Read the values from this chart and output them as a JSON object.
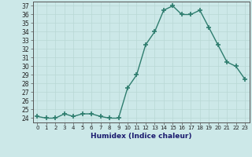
{
  "x": [
    0,
    1,
    2,
    3,
    4,
    5,
    6,
    7,
    8,
    9,
    10,
    11,
    12,
    13,
    14,
    15,
    16,
    17,
    18,
    19,
    20,
    21,
    22,
    23
  ],
  "y": [
    24.2,
    24.0,
    24.0,
    24.5,
    24.2,
    24.5,
    24.5,
    24.2,
    24.0,
    24.0,
    27.5,
    29.0,
    32.5,
    34.0,
    36.5,
    37.0,
    36.0,
    36.0,
    36.5,
    34.5,
    32.5,
    30.5,
    30.0,
    28.5
  ],
  "xlabel": "Humidex (Indice chaleur)",
  "ylim": [
    23.5,
    37.5
  ],
  "xlim": [
    -0.5,
    23.5
  ],
  "yticks": [
    24,
    25,
    26,
    27,
    28,
    29,
    30,
    31,
    32,
    33,
    34,
    35,
    36,
    37
  ],
  "xtick_labels": [
    "0",
    "1",
    "2",
    "3",
    "4",
    "5",
    "6",
    "7",
    "8",
    "9",
    "10",
    "11",
    "12",
    "13",
    "14",
    "15",
    "16",
    "17",
    "18",
    "19",
    "20",
    "21",
    "22",
    "23"
  ],
  "line_color": "#2e7d6e",
  "bg_color": "#cce8e8",
  "grid_color": "#b8d8d5",
  "marker": "+",
  "markersize": 4,
  "linewidth": 1.0,
  "ytick_fontsize": 5.5,
  "xtick_fontsize": 5.0,
  "xlabel_fontsize": 6.5
}
